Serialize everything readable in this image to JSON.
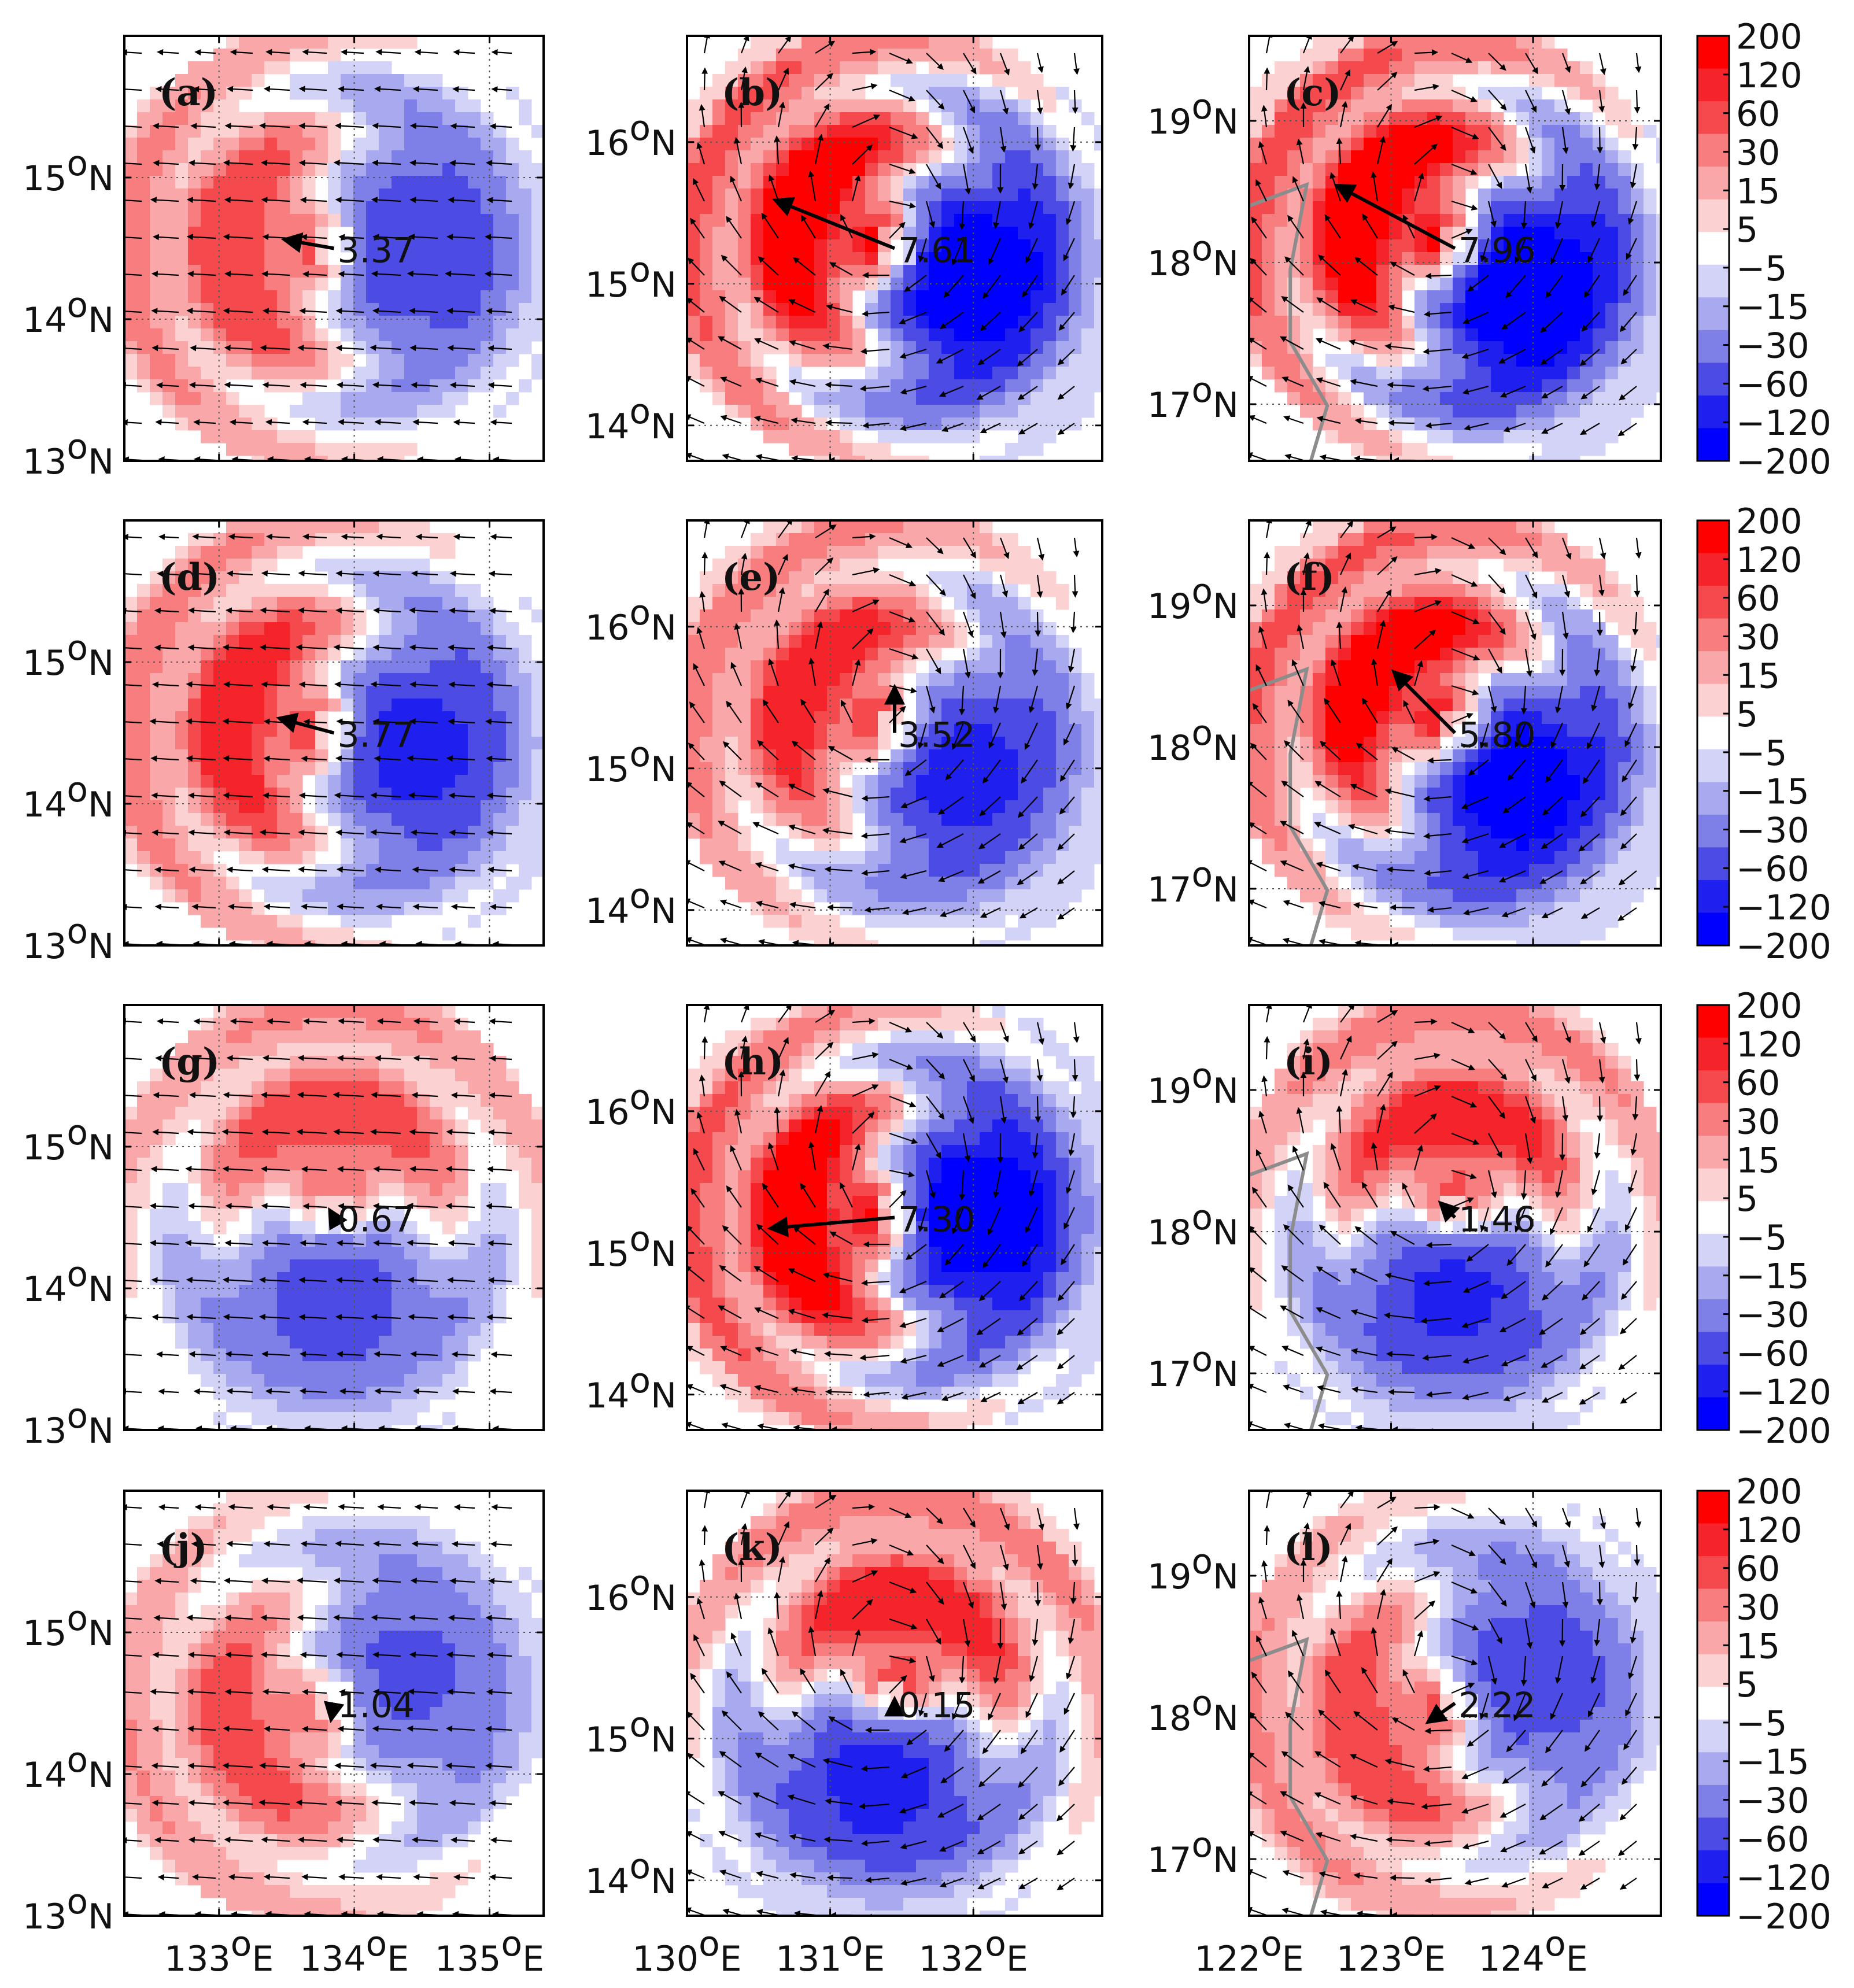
{
  "chart_data": {
    "type": "heatmap",
    "title": "",
    "rows": 4,
    "cols": 3,
    "colorbar": {
      "labels": [
        "200",
        "120",
        "60",
        "30",
        "15",
        "5",
        "−5",
        "−15",
        "−30",
        "−60",
        "−120",
        "−200"
      ],
      "colors": [
        "#ff0000",
        "#f5242b",
        "#f44a4d",
        "#f77d7e",
        "#f9a7a8",
        "#fcd1d1",
        "#ffffff",
        "#d3d3f8",
        "#a9a9f0",
        "#7f7fe8",
        "#4c4ce4",
        "#2020ee",
        "#0000ff"
      ]
    },
    "columns": [
      {
        "lon_ticks": [
          "133",
          "134",
          "135"
        ],
        "lon_range": [
          132.3,
          135.4
        ],
        "lat_ticks": [
          "13",
          "14",
          "15"
        ],
        "lat_range": [
          13.0,
          16.0
        ]
      },
      {
        "lon_ticks": [
          "130",
          "131",
          "132"
        ],
        "lon_range": [
          130.0,
          132.9
        ],
        "lat_ticks": [
          "14",
          "15",
          "16"
        ],
        "lat_range": [
          13.75,
          16.75
        ]
      },
      {
        "lon_ticks": [
          "122",
          "123",
          "124"
        ],
        "lon_range": [
          122.0,
          124.9
        ],
        "lat_ticks": [
          "17",
          "18",
          "19"
        ],
        "lat_range": [
          16.6,
          19.6
        ]
      }
    ],
    "tick_units": {
      "lon_suffix": "E",
      "lat_suffix": "N",
      "degree": "o"
    },
    "panels": [
      {
        "label": "(a)",
        "vector_value": "3.37",
        "vector_dir_deg": 170,
        "vector_len": 0.24,
        "strength": 0.45,
        "red_angle_deg": 180,
        "coast": false
      },
      {
        "label": "(b)",
        "vector_value": "7.61",
        "vector_dir_deg": 158,
        "vector_len": 0.62,
        "strength": 0.85,
        "red_angle_deg": 160,
        "coast": false
      },
      {
        "label": "(c)",
        "vector_value": "7.96",
        "vector_dir_deg": 152,
        "vector_len": 0.65,
        "strength": 0.9,
        "red_angle_deg": 150,
        "coast": true
      },
      {
        "label": "(d)",
        "vector_value": "3.77",
        "vector_dir_deg": 165,
        "vector_len": 0.27,
        "strength": 0.55,
        "red_angle_deg": 170,
        "coast": false
      },
      {
        "label": "(e)",
        "vector_value": "3.52",
        "vector_dir_deg": 90,
        "vector_len": 0.22,
        "strength": 0.55,
        "red_angle_deg": 150,
        "coast": false
      },
      {
        "label": "(f)",
        "vector_value": "5.80",
        "vector_dir_deg": 135,
        "vector_len": 0.42,
        "strength": 0.8,
        "red_angle_deg": 140,
        "coast": true
      },
      {
        "label": "(g)",
        "vector_value": "0.67",
        "vector_dir_deg": 120,
        "vector_len": 0.04,
        "strength": 0.35,
        "red_angle_deg": 90,
        "coast": false
      },
      {
        "label": "(h)",
        "vector_value": "7.30",
        "vector_dir_deg": 185,
        "vector_len": 0.6,
        "strength": 0.85,
        "red_angle_deg": 180,
        "coast": false
      },
      {
        "label": "(i)",
        "vector_value": "1.46",
        "vector_dir_deg": 135,
        "vector_len": 0.1,
        "strength": 0.5,
        "red_angle_deg": 90,
        "coast": true
      },
      {
        "label": "(j)",
        "vector_value": "1.04",
        "vector_dir_deg": 260,
        "vector_len": 0.08,
        "strength": 0.3,
        "red_angle_deg": 200,
        "coast": false
      },
      {
        "label": "(k)",
        "vector_value": "0.15",
        "vector_dir_deg": 90,
        "vector_len": 0.02,
        "strength": 0.55,
        "red_angle_deg": 80,
        "coast": false
      },
      {
        "label": "(l)",
        "vector_value": "2.22",
        "vector_dir_deg": 215,
        "vector_len": 0.16,
        "strength": 0.4,
        "red_angle_deg": 200,
        "coast": true
      }
    ]
  }
}
